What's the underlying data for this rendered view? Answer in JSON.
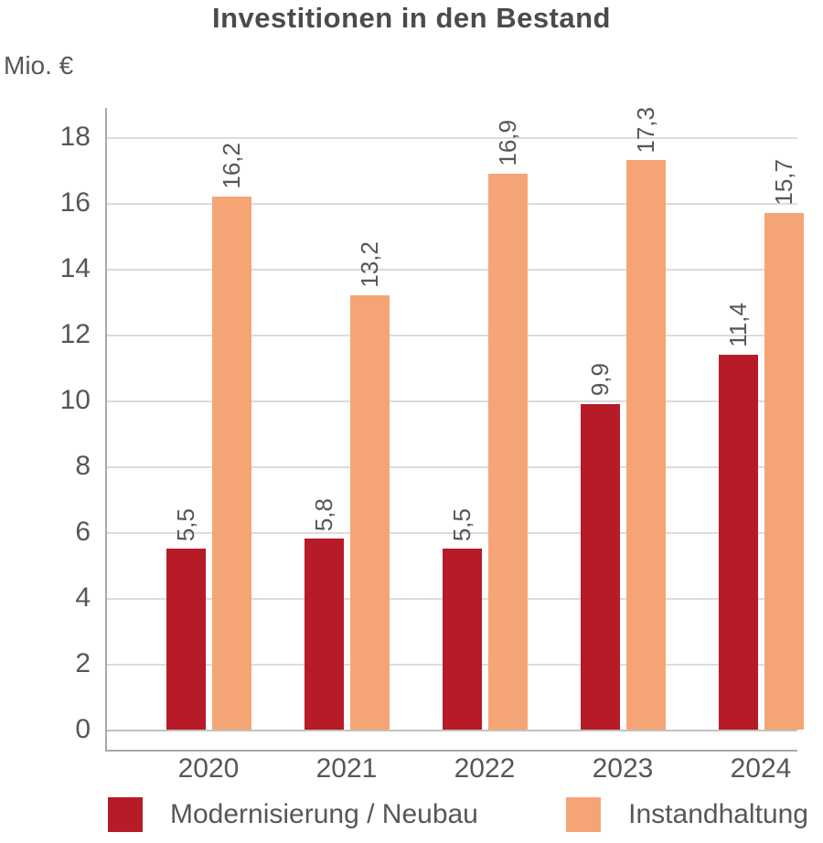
{
  "chart": {
    "title": "Investitionen in den Bestand",
    "unit": "Mio. €"
  },
  "chart_data": {
    "type": "bar",
    "title": "Investitionen in den Bestand",
    "ylabel": "Mio. €",
    "xlabel": "",
    "categories": [
      "2020",
      "2021",
      "2022",
      "2023",
      "2024"
    ],
    "series": [
      {
        "name": "Modernisierung / Neubau",
        "color": "#b71b28",
        "values": [
          5.5,
          5.8,
          5.5,
          9.9,
          11.4
        ],
        "labels": [
          "5,5",
          "5,8",
          "5,5",
          "9,9",
          "11,4"
        ]
      },
      {
        "name": "Instandhaltung",
        "color": "#f5a575",
        "values": [
          16.2,
          13.2,
          16.9,
          17.3,
          15.7
        ],
        "labels": [
          "16,2",
          "13,2",
          "16,9",
          "17,3",
          "15,7"
        ]
      }
    ],
    "ylim": [
      0,
      18
    ],
    "yticks": [
      0,
      2,
      4,
      6,
      8,
      10,
      12,
      14,
      16,
      18
    ],
    "grid": true,
    "legend_position": "bottom",
    "value_label_rotation": -90
  }
}
